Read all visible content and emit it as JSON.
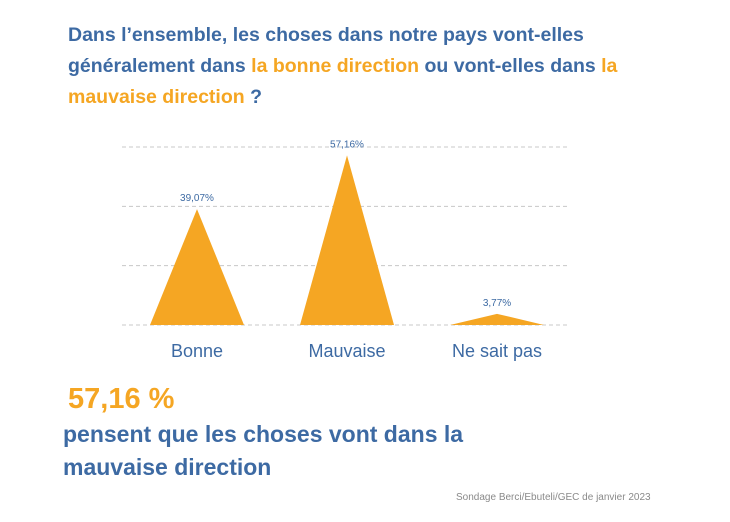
{
  "question": {
    "part1": "Dans l’ensemble, les choses dans notre pays vont-elles généralement dans ",
    "highlight1": "la bonne direction",
    "part2": " ou vont-elles dans ",
    "highlight2": "la mauvaise direction",
    "part3": " ?"
  },
  "colors": {
    "accent": "#f5a623",
    "blue": "#3d6aa3",
    "grid": "#c8c8c8"
  },
  "chart_data": {
    "type": "area",
    "categories": [
      "Bonne",
      "Mauvaise",
      "Ne sait pas"
    ],
    "values": [
      39.07,
      57.16,
      3.77
    ],
    "value_labels": [
      "39,07%",
      "57,16%",
      "3,77%"
    ],
    "ylim": [
      0,
      60
    ],
    "grid": true
  },
  "highlight_stat": {
    "value": "57,16 %",
    "text": "pensent que les choses vont dans la mauvaise direction"
  },
  "source": "Sondage Berci/Ebuteli/GEC de janvier 2023"
}
